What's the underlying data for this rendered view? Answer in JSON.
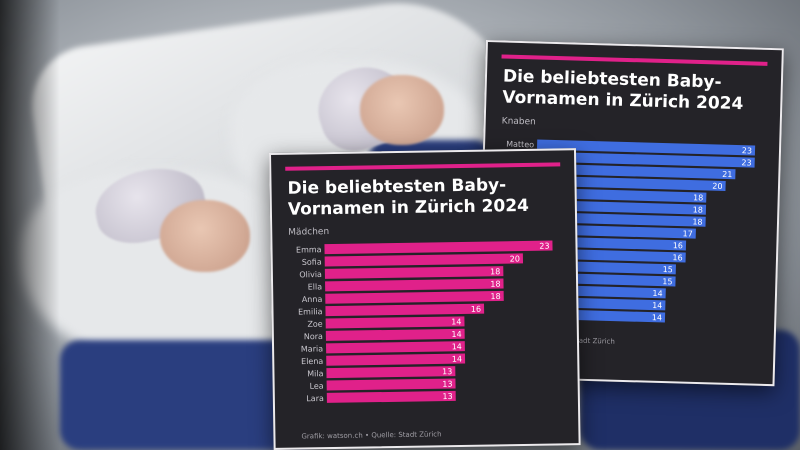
{
  "colors": {
    "card_background": "#242328",
    "accent_girls": "#e0218a",
    "accent_boys": "#3f6de0",
    "title_text": "#ffffff"
  },
  "chart_data": [
    {
      "type": "bar",
      "orientation": "horizontal",
      "title": "Die beliebtesten Baby-\nVornamen in Zürich 2024",
      "subtitle": "Mädchen",
      "footer": "Grafik: watson.ch • Quelle: Stadt Zürich",
      "color": "#e0218a",
      "categories": [
        "Emma",
        "Sofia",
        "Olivia",
        "Ella",
        "Anna",
        "Emilia",
        "Zoe",
        "Nora",
        "Maria",
        "Elena",
        "Mila",
        "Lea",
        "Lara"
      ],
      "values": [
        23,
        20,
        18,
        18,
        18,
        16,
        14,
        14,
        14,
        14,
        13,
        13,
        13
      ],
      "xlim": [
        0,
        23
      ],
      "legend": "none"
    },
    {
      "type": "bar",
      "orientation": "horizontal",
      "title": "Die beliebtesten Baby-\nVornamen in Zürich 2024",
      "subtitle": "Knaben",
      "footer": "Stadt Zürich",
      "color": "#3f6de0",
      "categories": [
        "Matteo",
        "",
        "",
        "",
        "",
        "",
        "",
        "",
        "",
        "",
        "",
        "",
        "",
        "",
        ""
      ],
      "values": [
        23,
        23,
        21,
        20,
        18,
        18,
        18,
        17,
        16,
        16,
        15,
        15,
        14,
        14,
        14
      ],
      "xlim": [
        0,
        23
      ],
      "legend": "none"
    }
  ]
}
